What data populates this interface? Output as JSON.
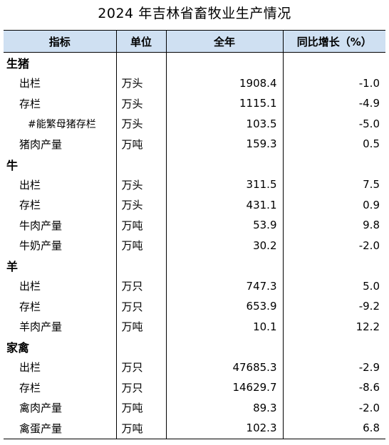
{
  "title": "2024 年吉林省畜牧业生产情况",
  "headers": {
    "indicator": "指标",
    "unit": "单位",
    "annual": "全年",
    "growth": "同比增长（%）"
  },
  "rows": [
    {
      "kind": "cat",
      "indicator": "生猪",
      "unit": "",
      "annual": "",
      "growth": ""
    },
    {
      "kind": "item",
      "indicator": "出栏",
      "unit": "万头",
      "annual": "1908.4",
      "growth": "-1.0"
    },
    {
      "kind": "item",
      "indicator": "存栏",
      "unit": "万头",
      "annual": "1115.1",
      "growth": "-4.9"
    },
    {
      "kind": "sub",
      "indicator": "#能繁母猪存栏",
      "unit": "万头",
      "annual": "103.5",
      "growth": "-5.0"
    },
    {
      "kind": "item",
      "indicator": "猪肉产量",
      "unit": "万吨",
      "annual": "159.3",
      "growth": "0.5"
    },
    {
      "kind": "cat",
      "indicator": "牛",
      "unit": "",
      "annual": "",
      "growth": ""
    },
    {
      "kind": "item",
      "indicator": "出栏",
      "unit": "万头",
      "annual": "311.5",
      "growth": "7.5"
    },
    {
      "kind": "item",
      "indicator": "存栏",
      "unit": "万头",
      "annual": "431.1",
      "growth": "0.9"
    },
    {
      "kind": "item",
      "indicator": "牛肉产量",
      "unit": "万吨",
      "annual": "53.9",
      "growth": "9.8"
    },
    {
      "kind": "item",
      "indicator": "牛奶产量",
      "unit": "万吨",
      "annual": "30.2",
      "growth": "-2.0"
    },
    {
      "kind": "cat",
      "indicator": "羊",
      "unit": "",
      "annual": "",
      "growth": ""
    },
    {
      "kind": "item",
      "indicator": "出栏",
      "unit": "万只",
      "annual": "747.3",
      "growth": "5.0"
    },
    {
      "kind": "item",
      "indicator": "存栏",
      "unit": "万只",
      "annual": "653.9",
      "growth": "-9.2"
    },
    {
      "kind": "item",
      "indicator": "羊肉产量",
      "unit": "万吨",
      "annual": "10.1",
      "growth": "12.2"
    },
    {
      "kind": "cat",
      "indicator": "家禽",
      "unit": "",
      "annual": "",
      "growth": ""
    },
    {
      "kind": "item",
      "indicator": "出栏",
      "unit": "万只",
      "annual": "47685.3",
      "growth": "-2.9"
    },
    {
      "kind": "item",
      "indicator": "存栏",
      "unit": "万只",
      "annual": "14629.7",
      "growth": "-8.6"
    },
    {
      "kind": "item",
      "indicator": "禽肉产量",
      "unit": "万吨",
      "annual": "89.3",
      "growth": "-2.0"
    },
    {
      "kind": "item",
      "indicator": "禽蛋产量",
      "unit": "万吨",
      "annual": "102.3",
      "growth": "6.8"
    }
  ]
}
